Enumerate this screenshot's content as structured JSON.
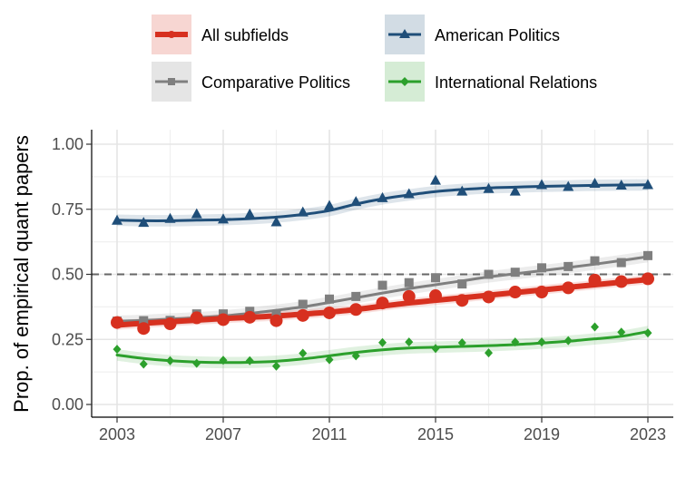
{
  "chart_data": {
    "type": "line",
    "title": "",
    "xlabel": "",
    "ylabel": "Prop. of empirical quant papers",
    "xlim": [
      2003,
      2023
    ],
    "ylim": [
      0,
      1
    ],
    "x_ticks": [
      "2003",
      "2007",
      "2011",
      "2015",
      "2019",
      "2023"
    ],
    "y_ticks": [
      "0.00",
      "0.25",
      "0.50",
      "0.75",
      "1.00"
    ],
    "reference_line": {
      "y": 0.5,
      "style": "dashed",
      "color": "#666666"
    },
    "grid": true,
    "legend_position": "top",
    "x": [
      2003,
      2004,
      2005,
      2006,
      2007,
      2008,
      2009,
      2010,
      2011,
      2012,
      2013,
      2014,
      2015,
      2016,
      2017,
      2018,
      2019,
      2020,
      2021,
      2022,
      2023
    ],
    "series": [
      {
        "name": "All subfields",
        "color": "#d7301f",
        "marker": "circle",
        "values": [
          0.315,
          0.292,
          0.31,
          0.333,
          0.326,
          0.335,
          0.322,
          0.342,
          0.352,
          0.365,
          0.39,
          0.415,
          0.418,
          0.4,
          0.413,
          0.432,
          0.432,
          0.448,
          0.478,
          0.472,
          0.483
        ],
        "trend": [
          0.305,
          0.312,
          0.318,
          0.324,
          0.33,
          0.335,
          0.34,
          0.347,
          0.355,
          0.365,
          0.378,
          0.39,
          0.4,
          0.41,
          0.42,
          0.43,
          0.44,
          0.45,
          0.46,
          0.47,
          0.48
        ]
      },
      {
        "name": "American Politics",
        "color": "#1f4e79",
        "marker": "triangle",
        "values": [
          0.708,
          0.7,
          0.715,
          0.733,
          0.713,
          0.732,
          0.702,
          0.74,
          0.765,
          0.78,
          0.795,
          0.81,
          0.862,
          0.82,
          0.83,
          0.82,
          0.845,
          0.838,
          0.85,
          0.843,
          0.845
        ],
        "trend": [
          0.708,
          0.706,
          0.706,
          0.708,
          0.71,
          0.714,
          0.72,
          0.73,
          0.745,
          0.77,
          0.79,
          0.805,
          0.818,
          0.826,
          0.832,
          0.835,
          0.838,
          0.84,
          0.842,
          0.843,
          0.844
        ]
      },
      {
        "name": "Comparative Politics",
        "color": "#7f7f7f",
        "marker": "square",
        "values": [
          0.32,
          0.322,
          0.323,
          0.348,
          0.348,
          0.358,
          0.345,
          0.385,
          0.405,
          0.415,
          0.458,
          0.468,
          0.487,
          0.463,
          0.5,
          0.508,
          0.525,
          0.53,
          0.552,
          0.545,
          0.572
        ],
        "trend": [
          0.32,
          0.323,
          0.328,
          0.333,
          0.34,
          0.35,
          0.362,
          0.375,
          0.392,
          0.41,
          0.428,
          0.445,
          0.46,
          0.475,
          0.49,
          0.502,
          0.514,
          0.526,
          0.539,
          0.553,
          0.568
        ]
      },
      {
        "name": "International Relations",
        "color": "#2ca02c",
        "marker": "diamond",
        "values": [
          0.212,
          0.155,
          0.168,
          0.158,
          0.17,
          0.168,
          0.147,
          0.197,
          0.172,
          0.187,
          0.238,
          0.24,
          0.215,
          0.237,
          0.198,
          0.24,
          0.24,
          0.245,
          0.298,
          0.278,
          0.275
        ],
        "trend": [
          0.19,
          0.177,
          0.168,
          0.163,
          0.161,
          0.162,
          0.166,
          0.175,
          0.187,
          0.2,
          0.21,
          0.217,
          0.22,
          0.223,
          0.226,
          0.23,
          0.236,
          0.243,
          0.252,
          0.262,
          0.28
        ]
      }
    ]
  }
}
